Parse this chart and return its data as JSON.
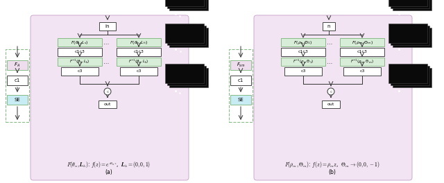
{
  "fig_width": 6.4,
  "fig_height": 2.64,
  "dpi": 100,
  "bg_color": "#ffffff",
  "pink_bg": "#f2e4f2",
  "green_box_fill": "#d8edd8",
  "green_box_edge": "#88bb88",
  "white_box_fill": "#ffffff",
  "white_box_edge": "#444444",
  "blue_box_fill": "#c8ecf4",
  "blue_box_edge": "#88bb88",
  "lavender_fill": "#eedded",
  "dashed_box_edge": "#88bb88",
  "caption_a": "$F(\\theta_n, \\boldsymbol{L}_h)$: $f(z) = e^{i\\theta_n z}$,  $\\boldsymbol{L}_h = (0,0,1)$",
  "caption_b": "$F(\\rho_m, \\Theta_m)$: $f(z) = \\rho_m z$,  $\\Theta_m \\to (0,0,-1)$",
  "label_a": "(a)",
  "label_b": "(b)"
}
